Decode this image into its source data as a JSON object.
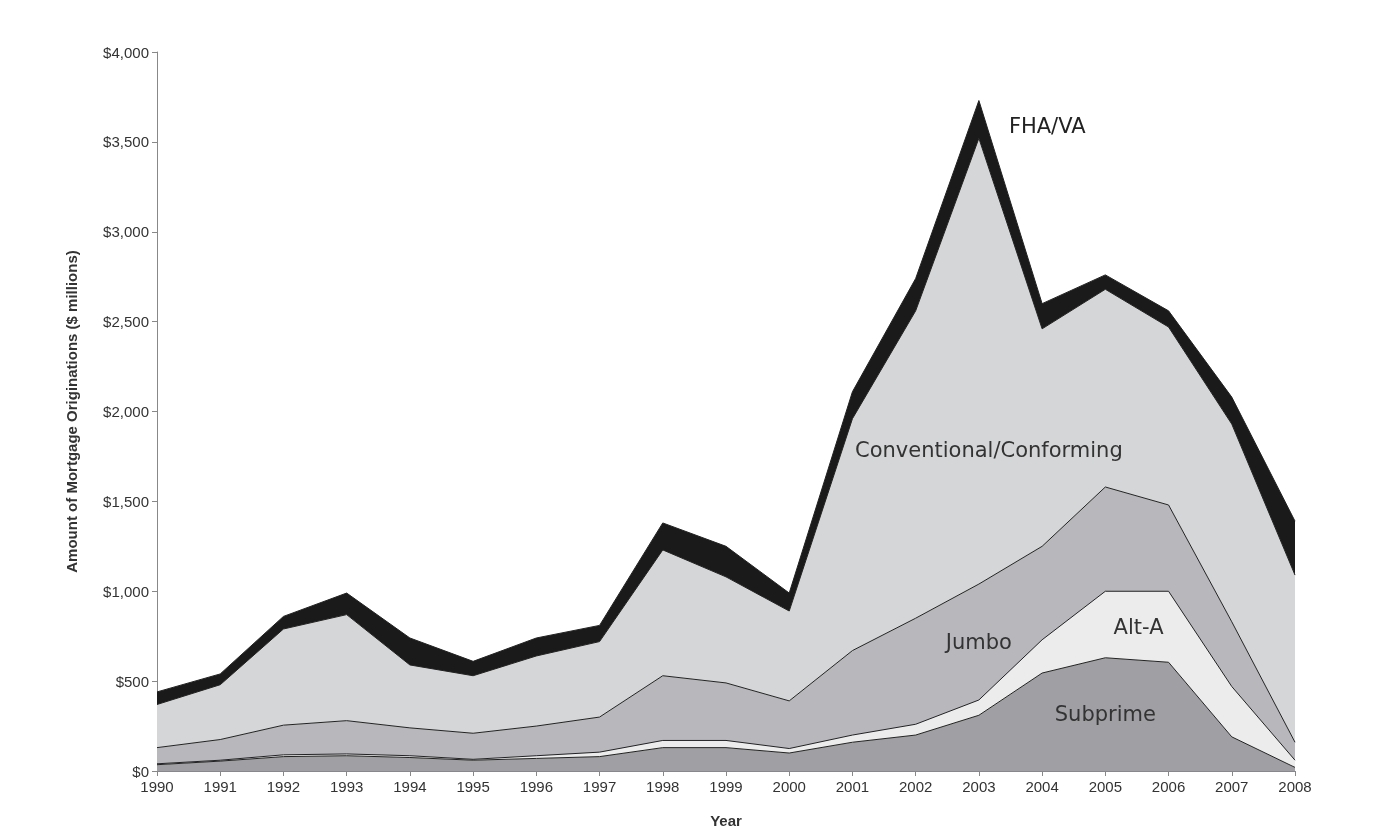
{
  "chart_data": {
    "type": "area",
    "stacked": true,
    "xlabel": "Year",
    "ylabel": "Amount of Mortgage Originations ($ millions)",
    "categories": [
      "1990",
      "1991",
      "1992",
      "1993",
      "1994",
      "1995",
      "1996",
      "1997",
      "1998",
      "1999",
      "2000",
      "2001",
      "2002",
      "2003",
      "2004",
      "2005",
      "2006",
      "2007",
      "2008"
    ],
    "series": [
      {
        "name": "Subprime",
        "color": "#a0a0a4",
        "values": [
          35,
          55,
          80,
          85,
          75,
          60,
          70,
          80,
          130,
          130,
          100,
          160,
          200,
          310,
          545,
          630,
          605,
          190,
          20
        ]
      },
      {
        "name": "Alt-A",
        "color": "#ececec",
        "values": [
          5,
          5,
          10,
          10,
          10,
          5,
          15,
          25,
          40,
          40,
          25,
          40,
          60,
          85,
          185,
          370,
          395,
          280,
          40
        ]
      },
      {
        "name": "Jumbo",
        "color": "#b8b8bc",
        "values": [
          90,
          115,
          165,
          185,
          155,
          145,
          165,
          195,
          360,
          320,
          265,
          470,
          590,
          645,
          520,
          580,
          480,
          360,
          100
        ]
      },
      {
        "name": "Conventional/Conforming",
        "color": "#d5d6d8",
        "values": [
          240,
          305,
          535,
          590,
          350,
          320,
          390,
          420,
          700,
          590,
          500,
          1290,
          1710,
          2480,
          1210,
          1100,
          990,
          1100,
          930
        ]
      },
      {
        "name": "FHA/VA",
        "color": "#1a1a1a",
        "values": [
          70,
          60,
          70,
          120,
          150,
          80,
          100,
          90,
          150,
          170,
          100,
          150,
          180,
          210,
          140,
          80,
          90,
          150,
          300
        ]
      }
    ],
    "ylim": [
      0,
      4000
    ],
    "yticks": [
      {
        "value": 0,
        "label": "$0"
      },
      {
        "value": 500,
        "label": "$500"
      },
      {
        "value": 1000,
        "label": "$1,000"
      },
      {
        "value": 1500,
        "label": "$1,500"
      },
      {
        "value": 2000,
        "label": "$2,000"
      },
      {
        "value": 2500,
        "label": "$2,500"
      },
      {
        "value": 3000,
        "label": "$3,000"
      },
      {
        "value": 3500,
        "label": "$3,500"
      },
      {
        "value": 4000,
        "label": "$4,000"
      }
    ],
    "grid": false,
    "legend": false
  }
}
